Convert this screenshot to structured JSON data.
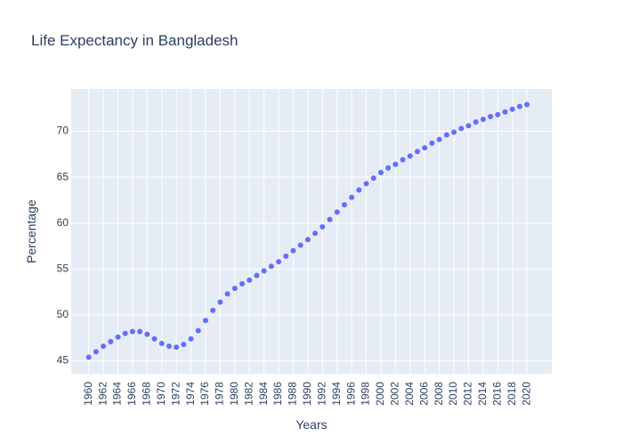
{
  "chart_data": {
    "type": "scatter",
    "title": "Life Expectancy in Bangladesh",
    "xlabel": "Years",
    "ylabel": "Percentage",
    "xlim": [
      1957.6,
      2023.4
    ],
    "ylim": [
      43.6,
      74.6
    ],
    "xticks": [
      1960,
      1962,
      1964,
      1966,
      1968,
      1970,
      1972,
      1974,
      1976,
      1978,
      1980,
      1982,
      1984,
      1986,
      1988,
      1990,
      1992,
      1994,
      1996,
      1998,
      2000,
      2002,
      2004,
      2006,
      2008,
      2010,
      2012,
      2014,
      2016,
      2018,
      2020
    ],
    "yticks": [
      45,
      50,
      55,
      60,
      65,
      70
    ],
    "grid": true,
    "colors": {
      "marker": "#636efa",
      "plot_bg": "#e5ecf6",
      "grid": "#ffffff",
      "text": "#2a3f5f"
    },
    "series": [
      {
        "x": [
          1960,
          1961,
          1962,
          1963,
          1964,
          1965,
          1966,
          1967,
          1968,
          1969,
          1970,
          1971,
          1972,
          1973,
          1974,
          1975,
          1976,
          1977,
          1978,
          1979,
          1980,
          1981,
          1982,
          1983,
          1984,
          1985,
          1986,
          1987,
          1988,
          1989,
          1990,
          1991,
          1992,
          1993,
          1994,
          1995,
          1996,
          1997,
          1998,
          1999,
          2000,
          2001,
          2002,
          2003,
          2004,
          2005,
          2006,
          2007,
          2008,
          2009,
          2010,
          2011,
          2012,
          2013,
          2014,
          2015,
          2016,
          2017,
          2018,
          2019,
          2020
        ],
        "y": [
          45.4,
          46.0,
          46.6,
          47.1,
          47.6,
          48.0,
          48.2,
          48.2,
          47.9,
          47.4,
          46.9,
          46.6,
          46.5,
          46.8,
          47.4,
          48.3,
          49.4,
          50.5,
          51.4,
          52.3,
          52.9,
          53.4,
          53.8,
          54.3,
          54.8,
          55.3,
          55.8,
          56.4,
          57.0,
          57.6,
          58.2,
          58.9,
          59.6,
          60.4,
          61.2,
          62.0,
          62.8,
          63.6,
          64.3,
          64.9,
          65.5,
          66.0,
          66.4,
          66.9,
          67.3,
          67.8,
          68.2,
          68.7,
          69.1,
          69.6,
          69.9,
          70.3,
          70.6,
          71.0,
          71.3,
          71.6,
          71.8,
          72.1,
          72.4,
          72.7,
          72.9
        ]
      }
    ]
  }
}
